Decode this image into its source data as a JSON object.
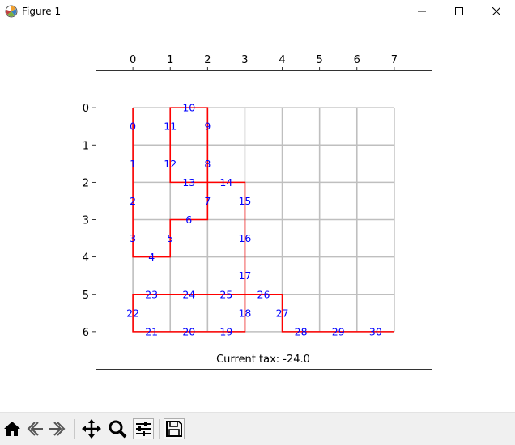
{
  "window": {
    "title": "Figure 1"
  },
  "toolbar": {
    "items": [
      {
        "name": "home",
        "icon": "home-icon"
      },
      {
        "name": "back",
        "icon": "back-arrow-icon"
      },
      {
        "name": "forward",
        "icon": "forward-arrow-icon"
      },
      {
        "name": "pan",
        "icon": "pan-arrows-icon"
      },
      {
        "name": "zoom",
        "icon": "magnifier-icon"
      },
      {
        "name": "configure",
        "icon": "sliders-icon"
      },
      {
        "name": "save",
        "icon": "floppy-disk-icon"
      }
    ]
  },
  "chart_data": {
    "type": "line",
    "title": "",
    "x_ticks": [
      0,
      1,
      2,
      3,
      4,
      5,
      6,
      7
    ],
    "y_ticks": [
      0,
      1,
      2,
      3,
      4,
      5,
      6
    ],
    "xlim": [
      -1,
      8
    ],
    "ylim": [
      7,
      -1
    ],
    "x_axis_position": "top",
    "y_axis_inverted": true,
    "grid": true,
    "grid_color": "#bfbfbf",
    "path_color": "#ff0000",
    "label_color": "#0000ff",
    "path": [
      [
        0,
        0
      ],
      [
        0,
        4
      ],
      [
        1,
        4
      ],
      [
        1,
        3
      ],
      [
        2,
        3
      ],
      [
        2,
        0
      ],
      [
        1,
        0
      ],
      [
        1,
        2
      ],
      [
        3,
        2
      ],
      [
        3,
        6
      ],
      [
        0,
        6
      ],
      [
        0,
        5
      ],
      [
        3,
        5
      ],
      [
        4,
        5
      ],
      [
        4,
        6
      ],
      [
        7,
        6
      ]
    ],
    "node_labels": [
      {
        "text": "0",
        "x": 0,
        "y": 0.5
      },
      {
        "text": "1",
        "x": 0,
        "y": 1.5
      },
      {
        "text": "2",
        "x": 0,
        "y": 2.5
      },
      {
        "text": "3",
        "x": 0,
        "y": 3.5
      },
      {
        "text": "4",
        "x": 0.5,
        "y": 4
      },
      {
        "text": "5",
        "x": 1,
        "y": 3.5
      },
      {
        "text": "6",
        "x": 1.5,
        "y": 3
      },
      {
        "text": "7",
        "x": 2,
        "y": 2.5
      },
      {
        "text": "8",
        "x": 2,
        "y": 1.5
      },
      {
        "text": "9",
        "x": 2,
        "y": 0.5
      },
      {
        "text": "10",
        "x": 1.5,
        "y": 0
      },
      {
        "text": "11",
        "x": 1,
        "y": 0.5
      },
      {
        "text": "12",
        "x": 1,
        "y": 1.5
      },
      {
        "text": "13",
        "x": 1.5,
        "y": 2
      },
      {
        "text": "14",
        "x": 2.5,
        "y": 2
      },
      {
        "text": "15",
        "x": 3,
        "y": 2.5
      },
      {
        "text": "16",
        "x": 3,
        "y": 3.5
      },
      {
        "text": "17",
        "x": 3,
        "y": 4.5
      },
      {
        "text": "18",
        "x": 3,
        "y": 5.5
      },
      {
        "text": "19",
        "x": 2.5,
        "y": 6
      },
      {
        "text": "20",
        "x": 1.5,
        "y": 6
      },
      {
        "text": "21",
        "x": 0.5,
        "y": 6
      },
      {
        "text": "22",
        "x": 0,
        "y": 5.5
      },
      {
        "text": "23",
        "x": 0.5,
        "y": 5
      },
      {
        "text": "24",
        "x": 1.5,
        "y": 5
      },
      {
        "text": "25",
        "x": 2.5,
        "y": 5
      },
      {
        "text": "26",
        "x": 3.5,
        "y": 5
      },
      {
        "text": "27",
        "x": 4,
        "y": 5.5
      },
      {
        "text": "28",
        "x": 4.5,
        "y": 6
      },
      {
        "text": "29",
        "x": 5.5,
        "y": 6
      },
      {
        "text": "30",
        "x": 6.5,
        "y": 6
      }
    ],
    "annotation": "Current tax: -24.0"
  }
}
